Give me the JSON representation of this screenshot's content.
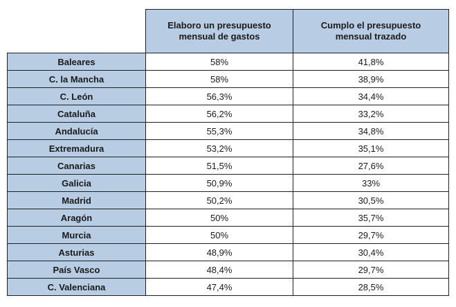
{
  "table": {
    "headers": [
      "",
      "Elaboro un presupuesto mensual de gastos",
      "Cumplo el presupuesto mensual trazado"
    ],
    "rows": [
      {
        "region": "Baleares",
        "presupuesto": "58%",
        "cumplo": "41,8%"
      },
      {
        "region": "C. la Mancha",
        "presupuesto": "58%",
        "cumplo": "38,9%"
      },
      {
        "region": "C. León",
        "presupuesto": "56,3%",
        "cumplo": "34,4%"
      },
      {
        "region": "Cataluña",
        "presupuesto": "56,2%",
        "cumplo": "33,2%"
      },
      {
        "region": "Andalucía",
        "presupuesto": "55,3%",
        "cumplo": "34,8%"
      },
      {
        "region": "Extremadura",
        "presupuesto": "53,2%",
        "cumplo": "35,1%"
      },
      {
        "region": "Canarias",
        "presupuesto": "51,5%",
        "cumplo": "27,6%"
      },
      {
        "region": "Galicia",
        "presupuesto": "50,9%",
        "cumplo": "33%"
      },
      {
        "region": "Madrid",
        "presupuesto": "50,2%",
        "cumplo": "30,5%"
      },
      {
        "region": "Aragón",
        "presupuesto": "50%",
        "cumplo": "35,7%"
      },
      {
        "region": "Murcia",
        "presupuesto": "50%",
        "cumplo": "29,7%"
      },
      {
        "region": "Asturias",
        "presupuesto": "48,9%",
        "cumplo": "30,4%"
      },
      {
        "region": "País Vasco",
        "presupuesto": "48,4%",
        "cumplo": "29,7%"
      },
      {
        "region": "C. Valenciana",
        "presupuesto": "47,4%",
        "cumplo": "28,5%"
      }
    ]
  },
  "colors": {
    "header_fill": "#b8cce4",
    "cell_fill": "#ffffff",
    "border": "#1f1f1f"
  }
}
